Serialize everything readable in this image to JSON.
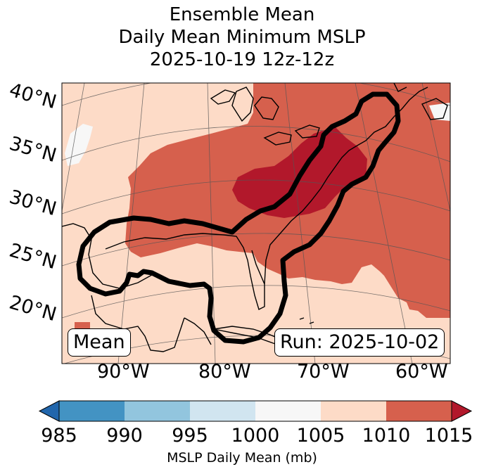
{
  "title": {
    "line1": "Ensemble Mean",
    "line2": "Daily Mean Minimum MSLP",
    "line3": "2025-10-19 12z-12z"
  },
  "map": {
    "lat_labels": [
      "40°N",
      "35°N",
      "30°N",
      "25°N",
      "20°N"
    ],
    "lon_labels": [
      "90°W",
      "80°W",
      "70°W",
      "60°W"
    ],
    "mean_box": "Mean",
    "run_box": "Run: 2025-10-02"
  },
  "colorbar": {
    "ticks": [
      "985",
      "990",
      "995",
      "1000",
      "1005",
      "1010",
      "1015"
    ],
    "label": "MSLP Daily Mean (mb)",
    "colors": [
      "#2166ac",
      "#4393c3",
      "#92c5de",
      "#d1e5f0",
      "#f7f7f7",
      "#fddbc7",
      "#d6604d",
      "#b2182b"
    ]
  },
  "fill_colors": {
    "1005-1010": "#fddbc7",
    "1010-1015": "#d6604d",
    "1015+": "#b2182b",
    "1000-1005": "#f7f7f7"
  }
}
